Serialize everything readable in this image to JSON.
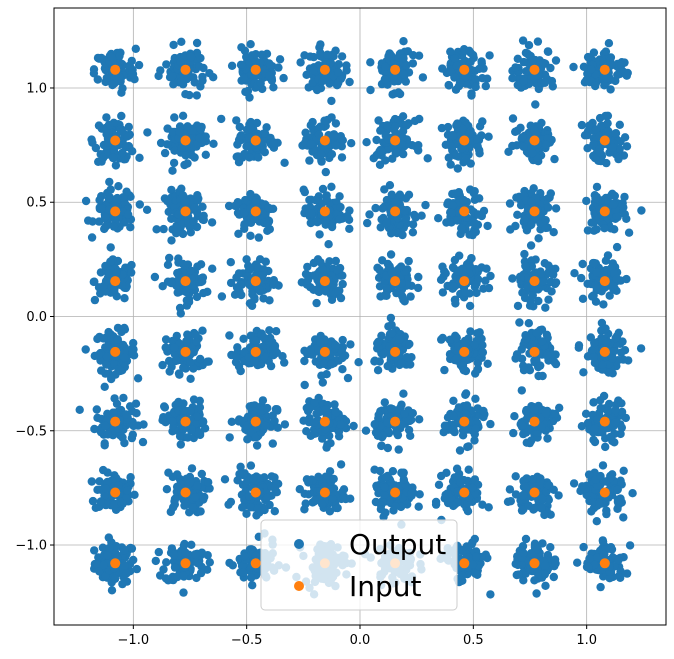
{
  "chart_data": {
    "type": "scatter",
    "title": "",
    "xlabel": "",
    "ylabel": "",
    "xlim": [
      -1.35,
      1.35
    ],
    "ylim": [
      -1.35,
      1.35
    ],
    "grid": true,
    "legend_position": "bottom-center",
    "x_ticks": [
      -1.0,
      -0.5,
      0.0,
      0.5,
      1.0
    ],
    "y_ticks": [
      -1.0,
      -0.5,
      0.0,
      0.5,
      1.0
    ],
    "x_tick_labels": [
      "−1.0",
      "−0.5",
      "0.0",
      "0.5",
      "1.0"
    ],
    "y_tick_labels": [
      "−1.0",
      "−0.5",
      "0.0",
      "0.5",
      "1.0"
    ],
    "constellation_levels": [
      -1.08,
      -0.77,
      -0.46,
      -0.155,
      0.155,
      0.46,
      0.77,
      1.08
    ],
    "series": [
      {
        "name": "Output",
        "color": "#1f77b4",
        "description_values": "noisy received symbols clustered around each input point",
        "noise_std": 0.045,
        "points_per_cluster": 80
      },
      {
        "name": "Input",
        "color": "#ff7f0e",
        "description_values": "64-QAM constellation: all combinations of constellation_levels"
      }
    ],
    "legend": {
      "entries": [
        "Output",
        "Input"
      ]
    }
  }
}
